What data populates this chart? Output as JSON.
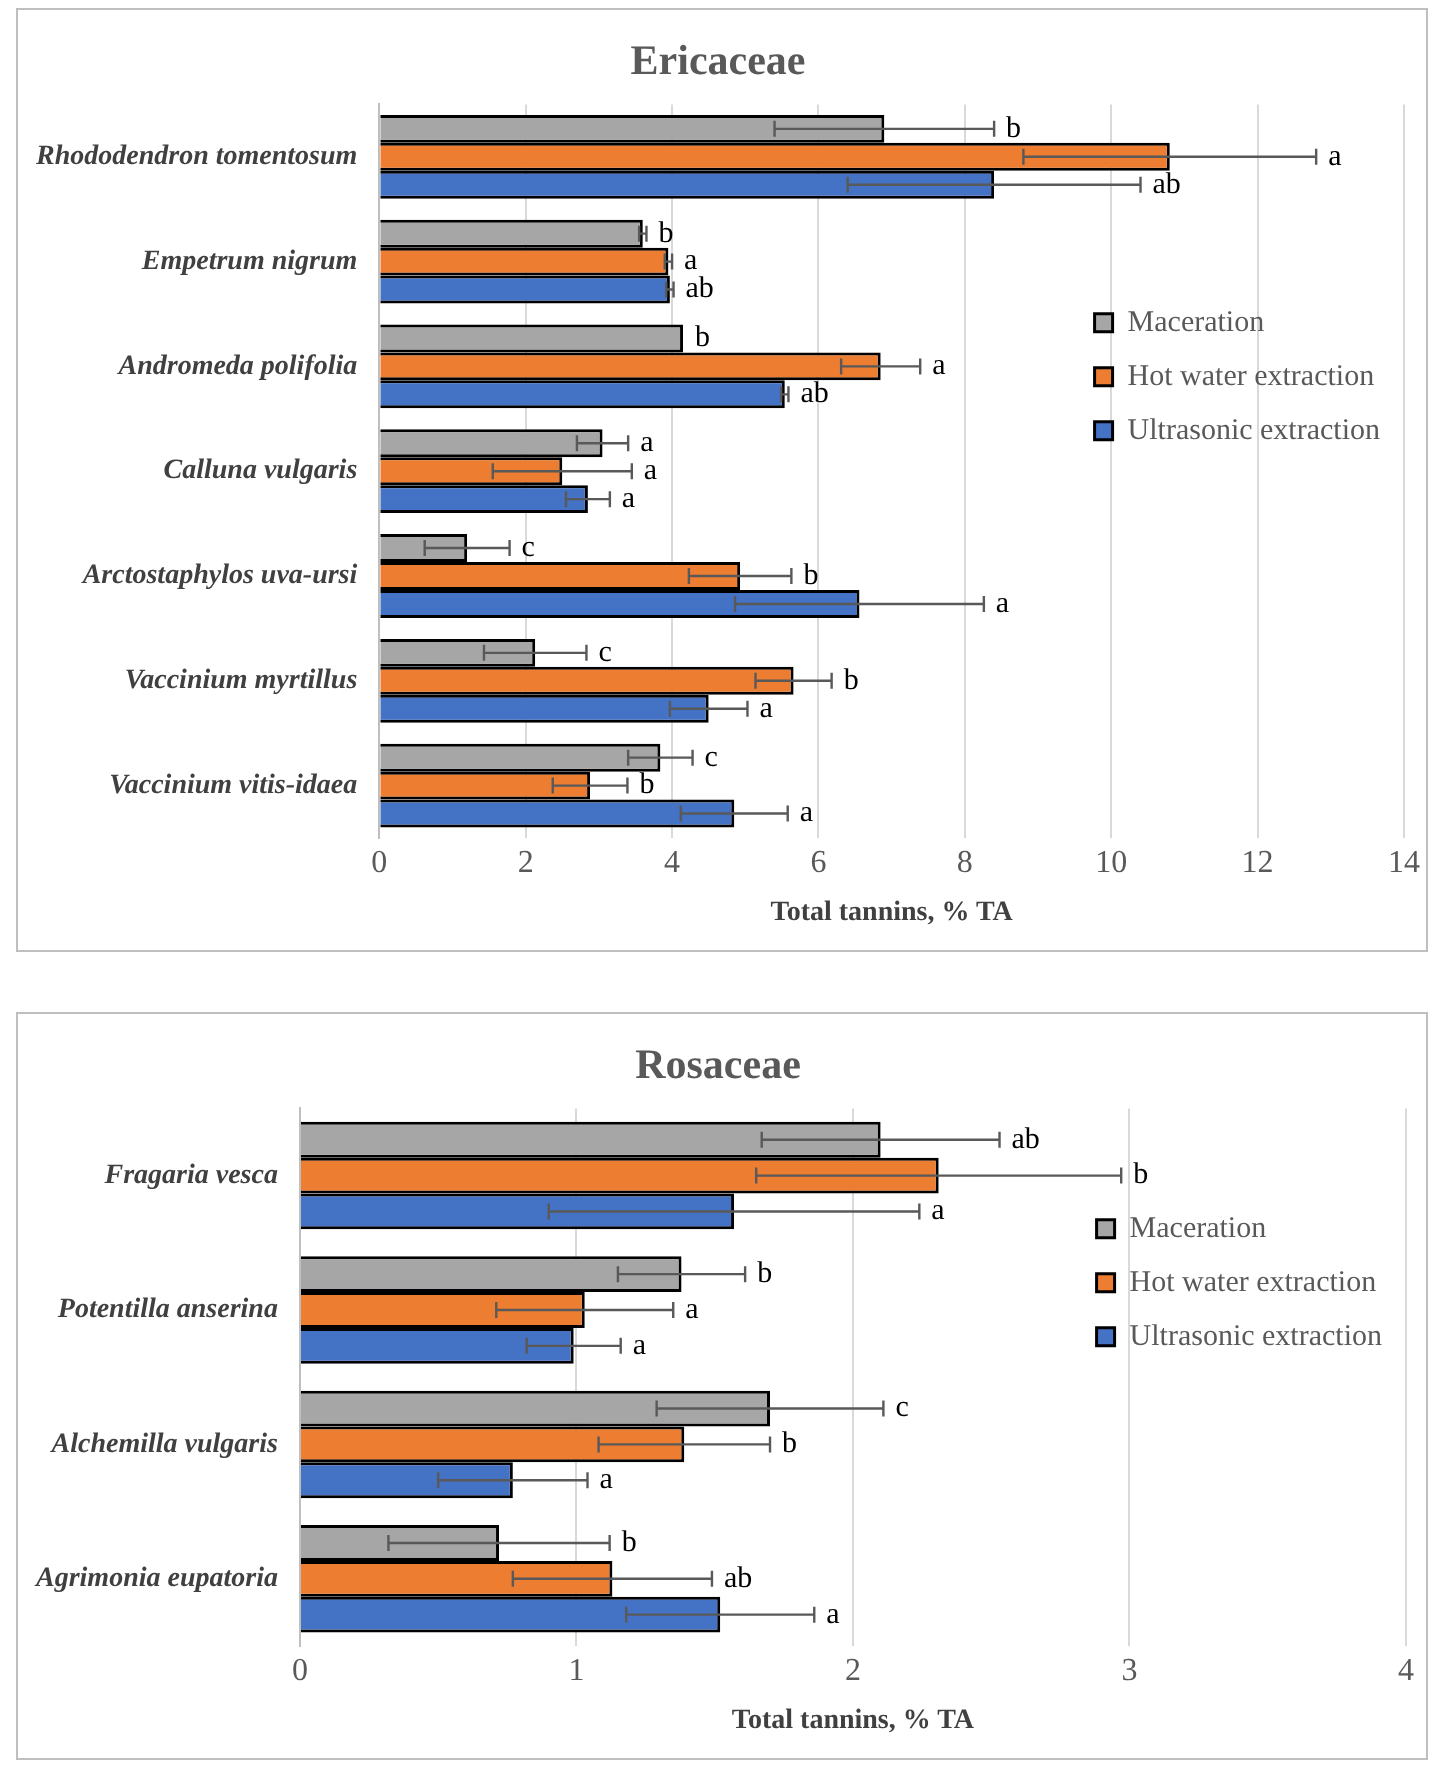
{
  "chart_data": [
    {
      "type": "bar",
      "orientation": "horizontal",
      "title": "Ericaceae",
      "xlabel": "Total tannins, % TA",
      "categories": [
        "Rhododendron tomentosum",
        "Empetrum nigrum",
        "Andromeda polifolia",
        "Calluna vulgaris",
        "Arctostaphylos uva-ursi",
        "Vaccinium myrtillus",
        "Vaccinium vitis-idaea"
      ],
      "xlim": [
        0,
        14
      ],
      "xticks": [
        0,
        2,
        4,
        6,
        8,
        10,
        12,
        14
      ],
      "grid": "x",
      "legend": "right",
      "series": [
        {
          "name": "Maceration",
          "color": "#a6a6a6",
          "values": [
            6.9,
            3.6,
            4.15,
            3.05,
            1.2,
            2.13,
            3.84
          ],
          "errors": [
            1.5,
            0.05,
            null,
            0.35,
            0.58,
            0.7,
            0.44
          ]
        },
        {
          "name": "Hot water extraction",
          "color": "#ed7d31",
          "values": [
            10.8,
            3.95,
            6.85,
            2.5,
            4.93,
            5.66,
            2.88
          ],
          "errors": [
            2.0,
            0.05,
            0.54,
            0.95,
            0.7,
            0.52,
            0.51
          ]
        },
        {
          "name": "Ultrasonic extraction",
          "color": "#4472c4",
          "values": [
            8.4,
            3.97,
            5.54,
            2.85,
            6.56,
            4.5,
            4.85
          ],
          "errors": [
            2.0,
            0.05,
            0.05,
            0.3,
            1.7,
            0.53,
            0.73
          ]
        }
      ],
      "annotations": [
        "b",
        "a",
        "ab",
        "b",
        "a",
        "ab",
        "b",
        "a",
        "ab",
        "a",
        "a",
        "a",
        "c",
        "b",
        "a",
        "c",
        "b",
        "a",
        "c",
        "b",
        "a"
      ]
    },
    {
      "type": "bar",
      "orientation": "horizontal",
      "title": "Rosaceae",
      "xlabel": "Total tannins, % TA",
      "categories": [
        "Fragaria vesca",
        "Potentilla anserina",
        "Alchemilla vulgaris",
        "Agrimonia eupatoria"
      ],
      "xlim": [
        0,
        4
      ],
      "xticks": [
        0,
        1,
        2,
        3,
        4
      ],
      "grid": "x",
      "legend": "right",
      "series": [
        {
          "name": "Maceration",
          "color": "#a6a6a6",
          "values": [
            2.1,
            1.38,
            1.7,
            0.72
          ],
          "errors": [
            0.43,
            0.23,
            0.41,
            0.4
          ]
        },
        {
          "name": "Hot water extraction",
          "color": "#ed7d31",
          "values": [
            2.31,
            1.03,
            1.39,
            1.13
          ],
          "errors": [
            0.66,
            0.32,
            0.31,
            0.36
          ]
        },
        {
          "name": "Ultrasonic extraction",
          "color": "#4472c4",
          "values": [
            1.57,
            0.99,
            0.77,
            1.52
          ],
          "errors": [
            0.67,
            0.17,
            0.27,
            0.34
          ]
        }
      ],
      "annotations": [
        "ab",
        "b",
        "a",
        "b",
        "a",
        "a",
        "c",
        "b",
        "a",
        "b",
        "ab",
        "a"
      ]
    }
  ]
}
